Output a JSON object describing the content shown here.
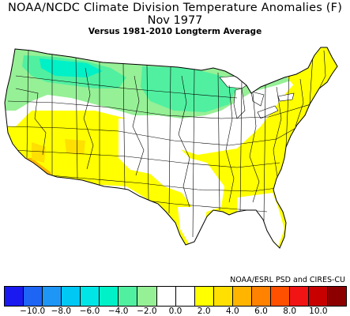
{
  "title": {
    "line1": "NOAA/NCDC Climate Division Temperature Anomalies (F)",
    "line2": "Nov 1977",
    "line3": "Versus 1981-2010 Longterm Average"
  },
  "credit": "NOAA/ESRL PSD and CIRES-CU",
  "legend": {
    "colors": [
      "#1a1af0",
      "#1e64f5",
      "#1e96f5",
      "#00c8f5",
      "#00e6e6",
      "#00f0c8",
      "#50f0a0",
      "#96f096",
      "#ffffff",
      "#ffffff",
      "#ffff00",
      "#ffe000",
      "#ffb400",
      "#ff8200",
      "#ff5000",
      "#f01414",
      "#c80000",
      "#8c0000"
    ],
    "tick_labels": [
      "−10.0",
      "−8.0",
      "−6.0",
      "−4.0",
      "−2.0",
      "0.0",
      "2.0",
      "4.0",
      "6.0",
      "8.0",
      "10.0"
    ],
    "tick_values": [
      -10,
      -8,
      -6,
      -4,
      -2,
      0,
      2,
      4,
      6,
      8,
      10
    ],
    "range": [
      -12,
      12
    ],
    "units": "F"
  },
  "map_colors": {
    "cold_far": "#00f0c8",
    "cold": "#50f0a0",
    "cold_light": "#96f096",
    "neutral": "#ffffff",
    "warm": "#ffff00",
    "warm_more": "#ffe000",
    "warm_most": "#ffb400",
    "lake": "#ffffff",
    "border": "#000000"
  }
}
